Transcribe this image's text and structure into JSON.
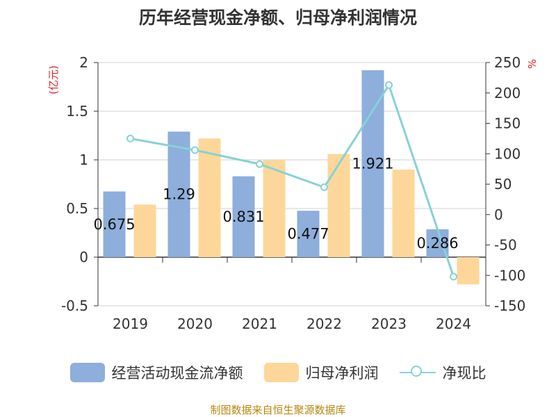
{
  "title": "历年经营现金净额、归母净利润情况",
  "source": "制图数据来自恒生聚源数据库",
  "chart_data": {
    "type": "bar",
    "categories": [
      "2019",
      "2020",
      "2021",
      "2022",
      "2023",
      "2024"
    ],
    "y_left": {
      "unit": "(亿元)",
      "ticks": [
        "2",
        "1.5",
        "1",
        "0.5",
        "0",
        "-0.5"
      ],
      "ylim": [
        -0.5,
        2
      ]
    },
    "y_right": {
      "unit": "%",
      "ticks": [
        "250",
        "200",
        "150",
        "100",
        "50",
        "0",
        "-50",
        "-100",
        "-150"
      ],
      "ylim": [
        -150,
        250
      ]
    },
    "series": [
      {
        "name": "经营活动现金流净额",
        "type": "bar",
        "axis": "left",
        "color": "#8eaedb",
        "values": [
          0.675,
          1.29,
          0.831,
          0.477,
          1.921,
          0.286
        ],
        "labels": [
          "0.675",
          "1.29",
          "0.831",
          "0.477",
          "1.921",
          "0.286"
        ]
      },
      {
        "name": "归母净利润",
        "type": "bar",
        "axis": "left",
        "color": "#fdd799",
        "values": [
          0.54,
          1.22,
          1.0,
          1.06,
          0.9,
          -0.28
        ]
      },
      {
        "name": "净现比",
        "type": "line",
        "axis": "right",
        "color": "#86d2d6",
        "values": [
          125,
          106,
          83,
          45,
          213,
          -102
        ]
      }
    ],
    "grid": true,
    "legend_position": "bottom"
  }
}
